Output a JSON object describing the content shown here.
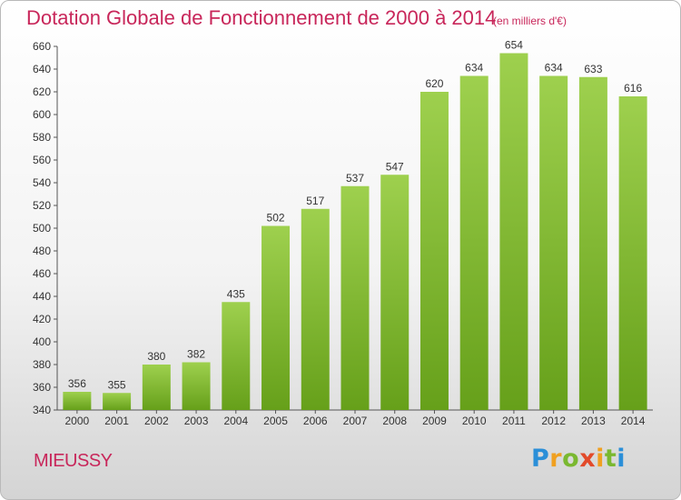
{
  "header": {
    "title": "Dotation Globale de Fonctionnement de 2000 à 2014",
    "subtitle": "(en milliers d'€)"
  },
  "footer": {
    "commune": "MIEUSSY",
    "logo_text": "Proxiti"
  },
  "colors": {
    "title": "#c8265a",
    "bar_light": "#9ed04e",
    "bar_dark": "#66a01a"
  },
  "chart_data": {
    "type": "bar",
    "title": "Dotation Globale de Fonctionnement de 2000 à 2014",
    "subtitle": "(en milliers d'€)",
    "xlabel": "",
    "ylabel": "",
    "categories": [
      "2000",
      "2001",
      "2002",
      "2003",
      "2004",
      "2005",
      "2006",
      "2007",
      "2008",
      "2009",
      "2010",
      "2011",
      "2012",
      "2013",
      "2014"
    ],
    "values": [
      356,
      355,
      380,
      382,
      435,
      502,
      517,
      537,
      547,
      620,
      634,
      654,
      634,
      633,
      616
    ],
    "ylim": [
      340,
      660
    ],
    "yticks": [
      340,
      360,
      380,
      400,
      420,
      440,
      460,
      480,
      500,
      520,
      540,
      560,
      580,
      600,
      620,
      640,
      660
    ],
    "grid": false,
    "legend": "none"
  }
}
